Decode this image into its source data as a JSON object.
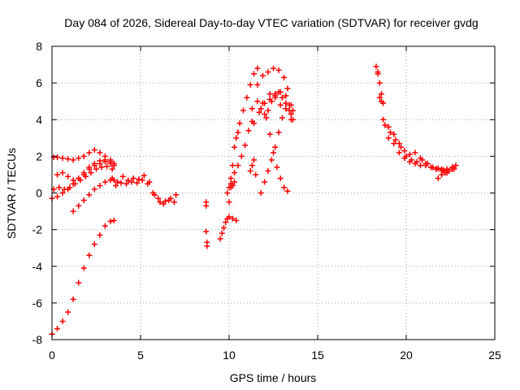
{
  "chart_data": {
    "type": "scatter",
    "title": "Day 084 of 2026, Sidereal Day-to-day VTEC variation (SDTVAR) for receiver gvdg",
    "xlabel": "GPS time / hours",
    "ylabel": "SDTVAR / TECUs",
    "xlim": [
      0,
      25
    ],
    "ylim": [
      -8,
      8
    ],
    "x_ticks": [
      0,
      5,
      10,
      15,
      20,
      25
    ],
    "x_tick_labels": [
      "0",
      "5",
      "10",
      "15",
      "20",
      "25"
    ],
    "y_ticks": [
      -8,
      -6,
      -4,
      -2,
      0,
      2,
      4,
      6,
      8
    ],
    "y_tick_labels": [
      "-8",
      "-6",
      "-4",
      "-2",
      "0",
      "2",
      "4",
      "6",
      "8"
    ],
    "grid": true,
    "marker": "plus",
    "color": "#ff0000",
    "series": [
      {
        "x": [
          0.0,
          0.3,
          0.6,
          0.9,
          1.2,
          1.5,
          1.8,
          2.1,
          2.4,
          2.7,
          3.0,
          3.3,
          3.5
        ],
        "y": [
          -7.7,
          -7.4,
          -7.0,
          -6.5,
          -5.8,
          -4.9,
          -4.1,
          -3.4,
          -2.8,
          -2.3,
          -1.8,
          -1.55,
          -1.5
        ]
      },
      {
        "x": [
          0.1,
          0.3,
          0.6,
          0.9,
          1.2,
          1.5,
          1.8,
          2.1,
          2.4,
          2.7,
          3.0,
          3.3,
          3.5
        ],
        "y": [
          1.95,
          1.95,
          1.9,
          1.85,
          1.8,
          1.9,
          2.0,
          2.2,
          2.35,
          2.2,
          2.0,
          1.8,
          1.6
        ]
      },
      {
        "x": [
          0.0,
          0.3,
          0.6,
          0.9,
          1.2,
          1.5,
          1.8,
          2.1,
          2.4,
          2.7,
          3.0,
          3.3,
          3.5
        ],
        "y": [
          -0.3,
          -0.2,
          0.0,
          0.2,
          0.5,
          0.8,
          1.1,
          1.4,
          1.6,
          1.75,
          1.8,
          1.7,
          1.6
        ]
      },
      {
        "x": [
          0.1,
          0.4,
          0.7,
          1.0,
          1.3,
          1.6,
          1.9,
          2.2,
          2.5,
          2.8,
          3.1,
          3.4
        ],
        "y": [
          0.2,
          0.3,
          0.2,
          0.3,
          0.5,
          0.7,
          0.9,
          1.1,
          1.3,
          1.4,
          1.45,
          1.3
        ]
      },
      {
        "x": [
          0.3,
          0.6,
          0.9,
          1.2,
          1.5,
          1.8,
          2.1,
          2.4,
          2.7,
          3.0,
          3.3,
          3.5
        ],
        "y": [
          1.0,
          1.1,
          0.9,
          0.7,
          0.8,
          1.0,
          1.3,
          1.5,
          1.6,
          1.7,
          1.6,
          1.5
        ]
      },
      {
        "x": [
          1.2,
          1.5,
          1.8,
          2.1,
          2.4,
          2.7,
          3.0,
          3.3,
          3.5
        ],
        "y": [
          -1.0,
          -0.7,
          -0.4,
          -0.1,
          0.2,
          0.4,
          0.6,
          0.7,
          0.7
        ]
      },
      {
        "x": [
          3.4,
          3.7,
          4.0,
          4.3,
          4.6,
          4.9,
          5.2,
          5.5,
          5.8,
          6.1,
          6.4,
          6.7,
          7.0
        ],
        "y": [
          0.8,
          0.6,
          0.9,
          0.7,
          0.8,
          0.75,
          0.95,
          0.6,
          -0.1,
          -0.5,
          -0.45,
          -0.3,
          -0.1
        ]
      },
      {
        "x": [
          3.6,
          3.9,
          4.2,
          4.5,
          4.8,
          5.1,
          5.4,
          5.7,
          6.0,
          6.3,
          6.6,
          6.9
        ],
        "y": [
          0.4,
          0.55,
          0.5,
          0.6,
          0.55,
          0.7,
          0.5,
          0.0,
          -0.3,
          -0.6,
          -0.4,
          -0.5
        ]
      },
      {
        "x": [
          8.7,
          8.7,
          8.7,
          8.75,
          8.75
        ],
        "y": [
          -0.5,
          -0.7,
          -2.1,
          -2.7,
          -2.9
        ]
      },
      {
        "x": [
          9.5,
          9.6,
          9.7,
          9.8,
          9.9
        ],
        "y": [
          -2.5,
          -2.2,
          -1.9,
          -1.6,
          -1.4
        ]
      },
      {
        "x": [
          10.0,
          10.1,
          10.2,
          10.3,
          10.4,
          10.5,
          10.6,
          10.8,
          11.0,
          11.2,
          11.4,
          11.6
        ],
        "y": [
          -0.5,
          0.3,
          1.5,
          2.5,
          3.0,
          3.3,
          3.8,
          4.5,
          5.2,
          5.9,
          6.5,
          6.8
        ]
      },
      {
        "x": [
          10.1,
          10.3,
          10.5,
          10.7,
          10.9,
          11.1,
          11.3
        ],
        "y": [
          0.8,
          1.1,
          1.5,
          2.0,
          2.6,
          3.4,
          3.9
        ]
      },
      {
        "x": [
          10.0,
          10.2,
          10.4
        ],
        "y": [
          -1.3,
          -1.4,
          -1.5
        ]
      },
      {
        "x": [
          9.9,
          10.0,
          10.1,
          10.2,
          10.3
        ],
        "y": [
          0.0,
          0.3,
          0.5,
          0.4,
          0.6
        ]
      },
      {
        "x": [
          11.2,
          11.3,
          11.4,
          11.5
        ],
        "y": [
          1.2,
          1.5,
          1.8,
          1.0
        ]
      },
      {
        "x": [
          11.3,
          11.6,
          11.9,
          12.2,
          12.5,
          12.8,
          13.1,
          13.3
        ],
        "y": [
          4.6,
          5.9,
          6.4,
          6.6,
          6.8,
          6.7,
          6.3,
          5.7
        ]
      },
      {
        "x": [
          11.4,
          11.7,
          12.0,
          12.3,
          12.6,
          12.9,
          13.2,
          13.5
        ],
        "y": [
          3.8,
          4.4,
          4.9,
          5.4,
          5.2,
          4.8,
          4.6,
          4.3
        ]
      },
      {
        "x": [
          11.6,
          11.8,
          12.0,
          12.2,
          12.4,
          12.6,
          12.8,
          13.0,
          13.2,
          13.4
        ],
        "y": [
          5.0,
          4.6,
          4.3,
          4.5,
          5.0,
          5.3,
          5.5,
          5.2,
          4.9,
          4.5
        ]
      },
      {
        "x": [
          11.9,
          12.1,
          12.3,
          12.5,
          12.7,
          12.9,
          13.1,
          13.3,
          13.5
        ],
        "y": [
          4.9,
          4.1,
          3.2,
          2.2,
          1.4,
          0.8,
          0.3,
          0.1,
          4.0
        ]
      },
      {
        "x": [
          11.8,
          12.0,
          12.2,
          12.4,
          12.6,
          12.8,
          13.0,
          13.2,
          13.4,
          13.6
        ],
        "y": [
          0.0,
          0.6,
          1.2,
          1.8,
          2.5,
          3.3,
          4.1,
          4.6,
          4.8,
          4.5
        ]
      },
      {
        "x": [
          12.3,
          12.6,
          12.9,
          13.2,
          13.5,
          13.6
        ],
        "y": [
          5.1,
          5.4,
          5.5,
          5.3,
          4.8,
          4.0
        ]
      },
      {
        "x": [
          18.3,
          18.4,
          18.5,
          18.6,
          18.7
        ],
        "y": [
          6.9,
          6.5,
          6.0,
          5.4,
          4.9
        ]
      },
      {
        "x": [
          18.4,
          18.5,
          18.6
        ],
        "y": [
          6.6,
          5.2,
          5.0
        ]
      },
      {
        "x": [
          18.7,
          19.0,
          19.3,
          19.6,
          19.9,
          20.2,
          20.5,
          20.8,
          21.1,
          21.4,
          21.7,
          22.0,
          22.3,
          22.6,
          22.8
        ],
        "y": [
          4.0,
          3.6,
          3.2,
          2.7,
          2.3,
          2.1,
          2.2,
          1.9,
          1.6,
          1.4,
          1.3,
          1.2,
          1.3,
          1.4,
          1.5
        ]
      },
      {
        "x": [
          18.8,
          19.1,
          19.4,
          19.7,
          20.0,
          20.3,
          20.6,
          20.9,
          21.2,
          21.5,
          21.8,
          22.1,
          22.4,
          22.7
        ],
        "y": [
          3.7,
          3.3,
          2.9,
          2.5,
          2.0,
          1.8,
          1.7,
          1.8,
          1.6,
          1.4,
          1.35,
          1.25,
          1.2,
          1.3
        ]
      },
      {
        "x": [
          19.0,
          19.3,
          19.6,
          19.9,
          20.2,
          20.5,
          20.8,
          21.1,
          21.4,
          21.7,
          22.0,
          22.3,
          22.6
        ],
        "y": [
          3.0,
          2.7,
          2.2,
          1.9,
          1.7,
          1.6,
          1.5,
          1.5,
          1.4,
          1.3,
          1.3,
          1.1,
          1.4
        ]
      },
      {
        "x": [
          21.8,
          22.0,
          22.2,
          22.4,
          22.6
        ],
        "y": [
          0.8,
          1.0,
          1.1,
          1.2,
          1.3
        ]
      }
    ]
  }
}
